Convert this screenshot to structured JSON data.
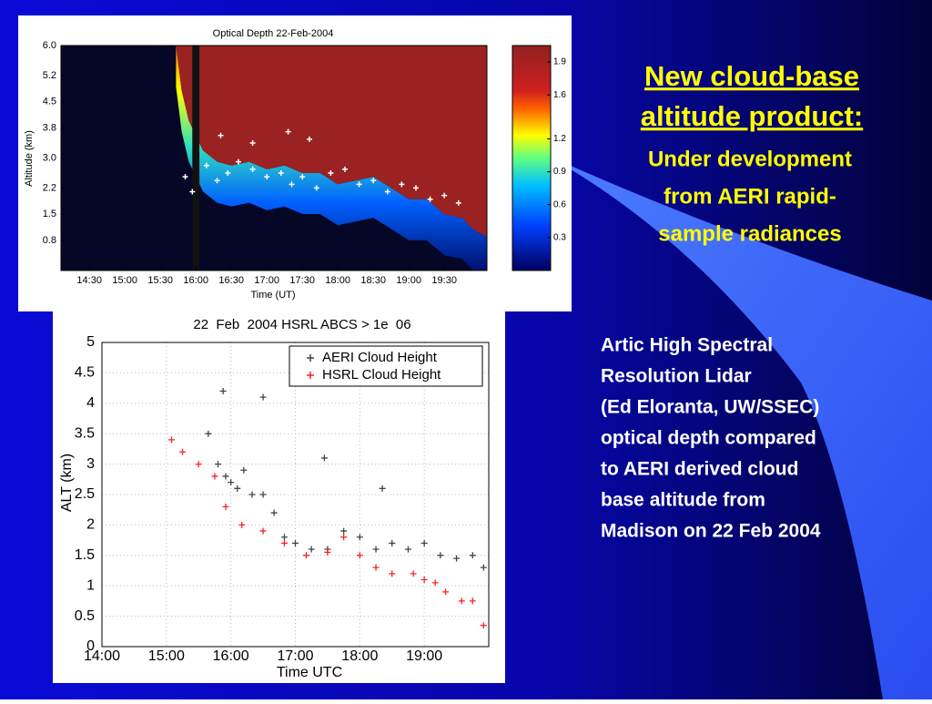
{
  "slide": {
    "title_lines": [
      "New cloud-base",
      "altitude product:"
    ],
    "subtitle_lines": [
      "Under development",
      "from  AERI rapid-",
      "sample radiances"
    ],
    "body_lines": [
      "Artic High Spectral",
      "Resolution Lidar",
      "(Ed Eloranta, UW/SSEC)",
      "optical depth compared",
      "to AERI derived cloud",
      "base altitude from",
      "Madison on 22 Feb 2004"
    ]
  },
  "chart_data": [
    {
      "type": "heatmap",
      "title": "Optical Depth  22-Feb-2004",
      "xlabel": "Time (UT)",
      "ylabel": "Altitude (km)",
      "xlim": [
        14.1,
        20.1
      ],
      "ylim": [
        0,
        6
      ],
      "xticks": [
        {
          "value": 14.5,
          "label": "14:30"
        },
        {
          "value": 15,
          "label": "15:00"
        },
        {
          "value": 15.5,
          "label": "15:30"
        },
        {
          "value": 16,
          "label": "16:00"
        },
        {
          "value": 16.5,
          "label": "16:30"
        },
        {
          "value": 17,
          "label": "17:00"
        },
        {
          "value": 17.5,
          "label": "17:30"
        },
        {
          "value": 18,
          "label": "18:00"
        },
        {
          "value": 18.5,
          "label": "18:30"
        },
        {
          "value": 19,
          "label": "19:00"
        },
        {
          "value": 19.5,
          "label": "19:30"
        }
      ],
      "yticks": [
        0.8,
        1.5,
        2.2,
        {
          "value": 3,
          "label": "3.0"
        },
        3.8,
        4.5,
        5.2,
        {
          "value": 6,
          "label": "6.0"
        }
      ],
      "clim": [
        0,
        2.05
      ],
      "cticks": [
        0.3,
        0.6,
        0.9,
        1.2,
        1.6,
        1.9
      ],
      "x": [
        15.72,
        15.8,
        15.9,
        16.1,
        16.3,
        16.5,
        16.75,
        17,
        17.25,
        17.5,
        17.75,
        18,
        18.25,
        18.5,
        18.75,
        19,
        19.25,
        19.5,
        19.75,
        19.9,
        20.1
      ],
      "values": [
        6,
        4.8,
        4,
        3.2,
        2.9,
        2.8,
        2.9,
        2.7,
        2.8,
        2.6,
        2.6,
        2.3,
        2.4,
        2.5,
        2.2,
        1.9,
        1.9,
        1.5,
        1.4,
        1.1,
        0.9
      ],
      "points": {
        "x": [
          15.85,
          15.95,
          16.15,
          16.3,
          16.45,
          16.6,
          16.8,
          17,
          17.2,
          17.35,
          17.5,
          17.7,
          17.9,
          18.1,
          18.3,
          18.5,
          18.7,
          18.9,
          19.1,
          19.3,
          19.5,
          19.7,
          16.35,
          16.8,
          17.3,
          17.6
        ],
        "values": [
          2.5,
          2.1,
          2.8,
          2.4,
          2.6,
          2.9,
          2.7,
          2.5,
          2.6,
          2.3,
          2.5,
          2.2,
          2.6,
          2.7,
          2.3,
          2.4,
          2.1,
          2.3,
          2.2,
          1.9,
          2.0,
          1.8,
          3.6,
          3.4,
          3.7,
          3.5
        ]
      }
    },
    {
      "type": "scatter",
      "title": "22  Feb  2004 HSRL ABCS > 1e  06",
      "xlabel": "Time UTC",
      "ylabel": "ALT (km)",
      "xlim": [
        14,
        20
      ],
      "ylim": [
        0,
        5
      ],
      "xticks": [
        {
          "value": 14,
          "label": "14:00"
        },
        {
          "value": 15,
          "label": "15:00"
        },
        {
          "value": 16,
          "label": "16:00"
        },
        {
          "value": 17,
          "label": "17:00"
        },
        {
          "value": 18,
          "label": "18:00"
        },
        {
          "value": 19,
          "label": "19:00"
        }
      ],
      "yticks": [
        0,
        0.5,
        1,
        1.5,
        2,
        2.5,
        3,
        3.5,
        4,
        4.5,
        5
      ],
      "grid": true,
      "legend": "upper right",
      "series": [
        {
          "name": "AERI Cloud Height",
          "color": "#444444",
          "x": [
            15.65,
            15.8,
            15.92,
            16.0,
            16.1,
            16.2,
            16.33,
            16.5,
            16.67,
            16.83,
            17.0,
            17.25,
            17.5,
            17.75,
            18.0,
            18.25,
            18.5,
            18.75,
            19.0,
            19.25,
            19.5,
            19.75,
            19.92,
            15.88,
            16.5,
            17.45,
            18.35
          ],
          "values": [
            3.5,
            3.0,
            2.8,
            2.7,
            2.6,
            2.9,
            2.5,
            2.5,
            2.2,
            1.8,
            1.7,
            1.6,
            1.6,
            1.9,
            1.8,
            1.6,
            1.7,
            1.6,
            1.7,
            1.5,
            1.45,
            1.5,
            1.3,
            4.2,
            4.1,
            3.1,
            2.6
          ]
        },
        {
          "name": "HSRL Cloud Height",
          "color": "#ff2020",
          "x": [
            15.08,
            15.25,
            15.5,
            15.75,
            15.92,
            16.17,
            16.5,
            16.83,
            17.17,
            17.5,
            17.75,
            18.0,
            18.25,
            18.5,
            18.83,
            19.0,
            19.17,
            19.33,
            19.58,
            19.75,
            19.92
          ],
          "values": [
            3.4,
            3.2,
            3.0,
            2.8,
            2.3,
            2.0,
            1.9,
            1.7,
            1.5,
            1.55,
            1.8,
            1.5,
            1.3,
            1.2,
            1.2,
            1.1,
            1.05,
            0.9,
            0.75,
            0.75,
            0.35
          ]
        }
      ]
    }
  ]
}
